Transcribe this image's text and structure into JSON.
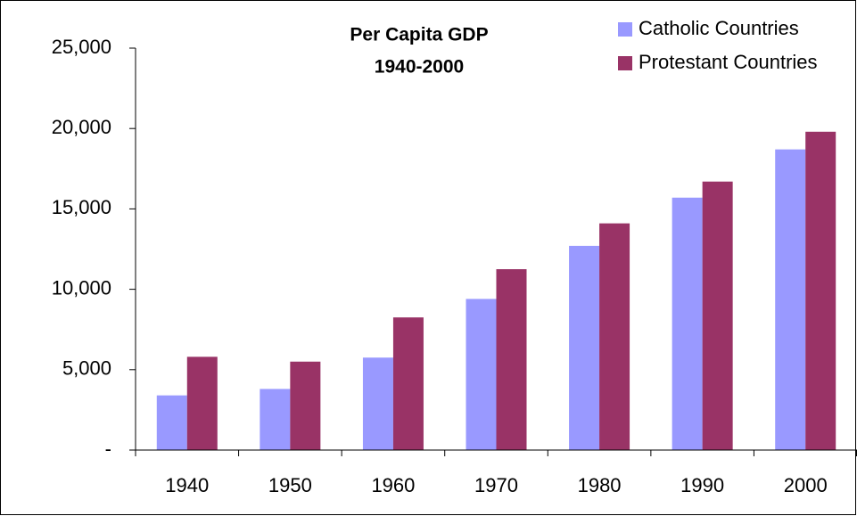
{
  "chart_data": {
    "type": "bar",
    "title": "Per Capita GDP",
    "subtitle": "1940-2000",
    "categories": [
      "1940",
      "1950",
      "1960",
      "1970",
      "1980",
      "1990",
      "2000"
    ],
    "series": [
      {
        "name": "Catholic Countries",
        "color": "#9999ff",
        "values": [
          3400,
          3800,
          5750,
          9400,
          12700,
          15700,
          18700
        ]
      },
      {
        "name": "Protestant Countries",
        "color": "#993366",
        "values": [
          5800,
          5500,
          8250,
          11250,
          14100,
          16700,
          19800
        ]
      }
    ],
    "ylim": [
      0,
      25000
    ],
    "yticks": [
      {
        "value": 0,
        "label": "-"
      },
      {
        "value": 5000,
        "label": "5,000"
      },
      {
        "value": 10000,
        "label": "10,000"
      },
      {
        "value": 15000,
        "label": "15,000"
      },
      {
        "value": 20000,
        "label": "20,000"
      },
      {
        "value": 25000,
        "label": "25,000"
      }
    ],
    "grid": false,
    "legend": "top-right"
  }
}
